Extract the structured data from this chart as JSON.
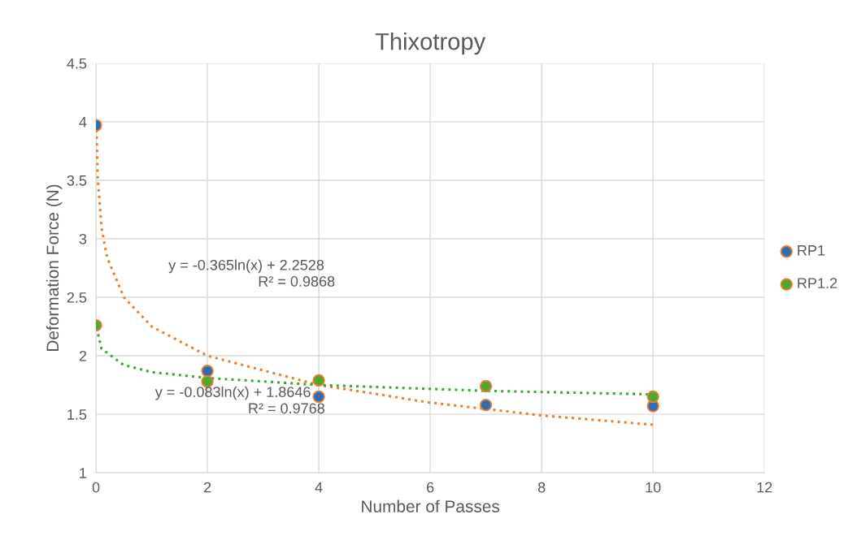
{
  "chart_data": {
    "type": "scatter",
    "title": "Thixotropy",
    "xlabel": "Number of Passes",
    "ylabel": "Deformation Force (N)",
    "xlim": [
      0,
      12
    ],
    "xticks": [
      0,
      2,
      4,
      6,
      8,
      10,
      12
    ],
    "ylim": [
      1,
      4.5
    ],
    "yticks": [
      1,
      1.5,
      2,
      2.5,
      3,
      3.5,
      4,
      4.5
    ],
    "grid": true,
    "legend": "right",
    "marker": "circle",
    "series": [
      {
        "name": "RP1",
        "color": "#2e6db4",
        "x": [
          0,
          2,
          4,
          7,
          10
        ],
        "values": [
          3.97,
          1.87,
          1.65,
          1.58,
          1.57
        ]
      },
      {
        "name": "RP1.2",
        "color": "#4ea72e",
        "x": [
          0,
          2,
          4,
          7,
          10
        ],
        "values": [
          2.26,
          1.78,
          1.79,
          1.74,
          1.65
        ]
      },
      {
        "type": "line",
        "color": "#ed7d31",
        "line_style": "dotted",
        "marker": "none",
        "x": [
          0.01,
          0.03,
          0.1,
          0.2,
          0.5,
          1,
          2,
          4,
          6,
          8,
          10
        ],
        "values": [
          3.93,
          3.53,
          3.09,
          2.84,
          2.5,
          2.25,
          2.0,
          1.75,
          1.6,
          1.49,
          1.41
        ]
      },
      {
        "type": "line",
        "color": "#3aaa35",
        "line_style": "dotted",
        "marker": "none",
        "x": [
          0.01,
          0.1,
          0.5,
          1,
          2,
          4,
          7,
          10
        ],
        "values": [
          2.24,
          2.06,
          1.92,
          1.86,
          1.81,
          1.75,
          1.7,
          1.67
        ]
      }
    ],
    "annotations": [
      "y = -0.365ln(x) + 2.2528",
      "R² = 0.9868",
      "y = -0.083ln(x) + 1.8646",
      "R² = 0.9768"
    ]
  }
}
